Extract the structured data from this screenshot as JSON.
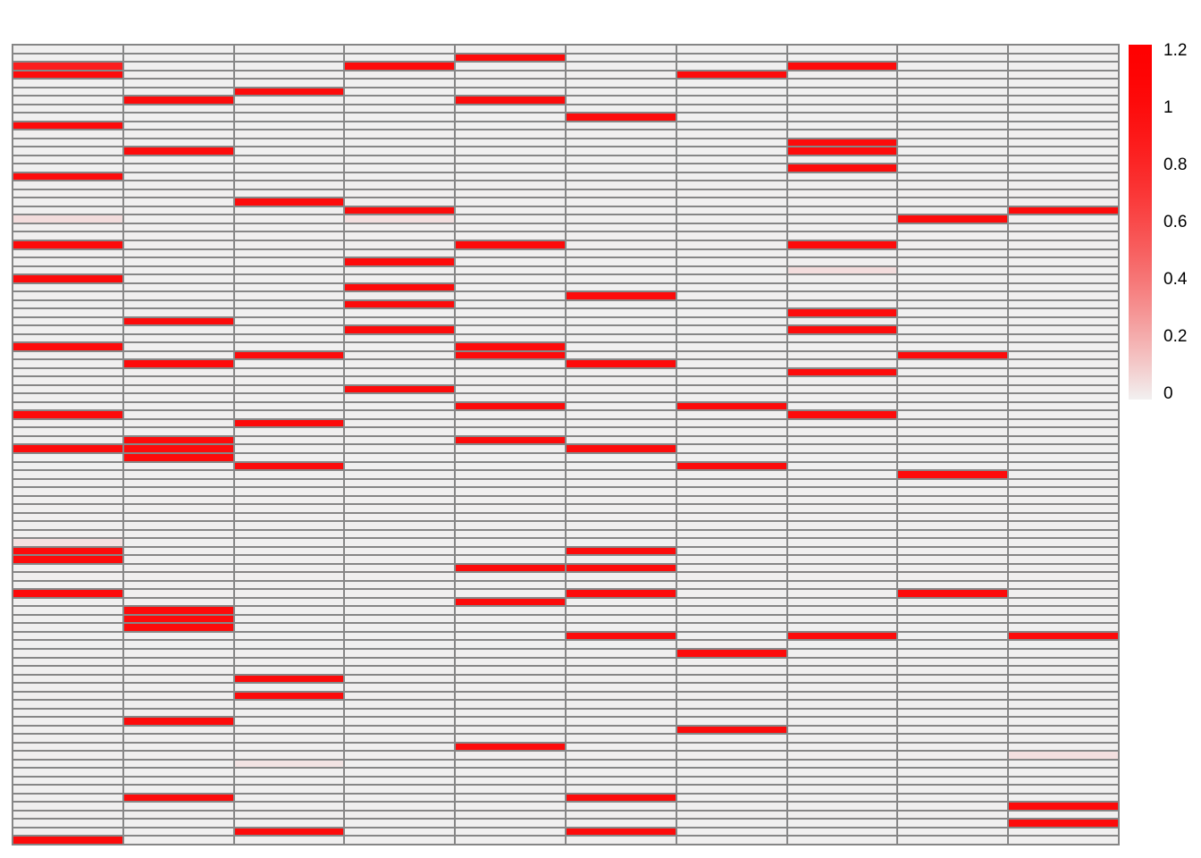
{
  "figure": {
    "background_color": "#FFFFFF"
  },
  "chart_data": {
    "type": "heatmap",
    "title": "",
    "xlabel": "",
    "ylabel": "",
    "grid": {
      "rows": 94,
      "cols": 10,
      "border_color": "#868686",
      "cell_background": "#F0EFEF",
      "axis_labels_shown": false
    },
    "color_scale": {
      "min": 0,
      "max": 1.2,
      "zero_color": "#F2F0F0",
      "max_color": "#FF0000"
    },
    "legend": {
      "position": "right",
      "ticks": [
        "1.2",
        "1",
        "0.8",
        "0.6",
        "0.4",
        "0.2",
        "0"
      ],
      "tick_values": [
        1.2,
        1,
        0.8,
        0.6,
        0.4,
        0.2,
        0
      ]
    },
    "cells": [
      [
        2,
        0,
        0.85
      ],
      [
        3,
        0,
        1
      ],
      [
        9,
        0,
        1
      ],
      [
        15,
        0,
        1
      ],
      [
        20,
        0,
        0.06
      ],
      [
        23,
        0,
        1
      ],
      [
        27,
        0,
        1
      ],
      [
        35,
        0,
        1
      ],
      [
        43,
        0,
        1
      ],
      [
        47,
        0,
        1
      ],
      [
        58,
        0,
        0.05
      ],
      [
        59,
        0,
        1
      ],
      [
        60,
        0,
        1
      ],
      [
        64,
        0,
        1
      ],
      [
        93,
        0,
        1
      ],
      [
        6,
        1,
        1
      ],
      [
        12,
        1,
        1
      ],
      [
        32,
        1,
        1
      ],
      [
        37,
        1,
        1
      ],
      [
        46,
        1,
        1
      ],
      [
        47,
        1,
        1
      ],
      [
        48,
        1,
        1
      ],
      [
        66,
        1,
        1
      ],
      [
        67,
        1,
        1
      ],
      [
        68,
        1,
        1
      ],
      [
        79,
        1,
        1
      ],
      [
        88,
        1,
        1
      ],
      [
        5,
        2,
        1
      ],
      [
        18,
        2,
        1
      ],
      [
        36,
        2,
        1
      ],
      [
        44,
        2,
        1
      ],
      [
        49,
        2,
        1
      ],
      [
        74,
        2,
        1
      ],
      [
        76,
        2,
        1
      ],
      [
        84,
        2,
        0.04
      ],
      [
        92,
        2,
        1
      ],
      [
        2,
        3,
        1
      ],
      [
        19,
        3,
        1
      ],
      [
        20,
        3,
        0.05
      ],
      [
        25,
        3,
        1
      ],
      [
        28,
        3,
        1
      ],
      [
        30,
        3,
        1
      ],
      [
        33,
        3,
        1
      ],
      [
        40,
        3,
        1
      ],
      [
        1,
        4,
        1
      ],
      [
        6,
        4,
        1
      ],
      [
        23,
        4,
        1
      ],
      [
        35,
        4,
        1
      ],
      [
        36,
        4,
        1
      ],
      [
        42,
        4,
        1
      ],
      [
        46,
        4,
        1
      ],
      [
        61,
        4,
        1
      ],
      [
        65,
        4,
        1
      ],
      [
        82,
        4,
        1
      ],
      [
        8,
        5,
        1
      ],
      [
        29,
        5,
        1
      ],
      [
        37,
        5,
        1
      ],
      [
        47,
        5,
        1
      ],
      [
        59,
        5,
        1
      ],
      [
        61,
        5,
        1
      ],
      [
        64,
        5,
        1
      ],
      [
        69,
        5,
        1
      ],
      [
        88,
        5,
        1
      ],
      [
        92,
        5,
        1
      ],
      [
        3,
        6,
        1
      ],
      [
        42,
        6,
        1
      ],
      [
        49,
        6,
        1
      ],
      [
        71,
        6,
        1
      ],
      [
        80,
        6,
        1
      ],
      [
        2,
        7,
        1
      ],
      [
        11,
        7,
        1
      ],
      [
        12,
        7,
        1
      ],
      [
        14,
        7,
        1
      ],
      [
        23,
        7,
        1
      ],
      [
        26,
        7,
        0.06
      ],
      [
        31,
        7,
        1
      ],
      [
        33,
        7,
        1
      ],
      [
        38,
        7,
        1
      ],
      [
        43,
        7,
        1
      ],
      [
        69,
        7,
        1
      ],
      [
        20,
        8,
        1
      ],
      [
        36,
        8,
        1
      ],
      [
        50,
        8,
        1
      ],
      [
        64,
        8,
        1
      ],
      [
        19,
        9,
        1
      ],
      [
        69,
        9,
        1
      ],
      [
        83,
        9,
        0.05
      ],
      [
        89,
        9,
        1
      ],
      [
        91,
        9,
        1
      ]
    ]
  }
}
